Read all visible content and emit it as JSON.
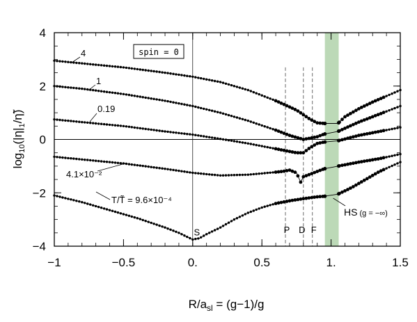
{
  "chart_data": {
    "type": "line",
    "xlabel": "R/a_sl = (g−1)/g",
    "xlabel_parts": {
      "main": "R/a",
      "sub": "sl",
      "rest": " = (g−1)/g"
    },
    "ylabel_text": "log10(|η|1/η̃)",
    "ylabel_parts": {
      "prefix": "log",
      "sub1": "10",
      "mid": "(|η|",
      "sub2": "1",
      "tail": "/η̃)"
    },
    "xlim": [
      -1,
      1.5
    ],
    "ylim": [
      -4,
      4
    ],
    "x_ticks": [
      -1,
      -0.5,
      0,
      0.5,
      1,
      1.5
    ],
    "x_tick_labels": [
      "−1",
      "−0.5",
      "0.",
      "0.5",
      "1.",
      "1.5"
    ],
    "y_ticks": [
      -4,
      -2,
      0,
      2,
      4
    ],
    "y_tick_labels": [
      "−4",
      "−2",
      "0",
      "2",
      "4"
    ],
    "legend_box": "spin = 0",
    "shaded_band": {
      "x0": 0.955,
      "x1": 1.055,
      "color": "#bcd9b7"
    },
    "zero_line_y": 0,
    "vertical_solid_x": 0,
    "dashed_lines": [
      {
        "x": 0.67,
        "label": "P"
      },
      {
        "x": 0.8,
        "label": "D"
      },
      {
        "x": 0.865,
        "label": "F"
      }
    ],
    "special_points": {
      "S": {
        "x": 0.0,
        "y": -3.75,
        "label": "S"
      },
      "HS": {
        "x": 1.0,
        "y": -2.15,
        "label": "HS",
        "sublabel": "(g = −∞)"
      }
    },
    "curve_labels": [
      "4",
      "1",
      "0.19",
      "4.1×10⁻²",
      "T/T̃ = 9.6×10⁻⁴"
    ],
    "series": [
      {
        "name": "4",
        "points": [
          [
            -1,
            2.95
          ],
          [
            -0.8,
            2.85
          ],
          [
            -0.5,
            2.7
          ],
          [
            -0.2,
            2.5
          ],
          [
            0,
            2.35
          ],
          [
            0.2,
            2.15
          ],
          [
            0.4,
            1.85
          ],
          [
            0.6,
            1.45
          ],
          [
            0.75,
            1.1
          ],
          [
            0.85,
            0.75
          ],
          [
            0.9,
            0.62
          ],
          [
            0.95,
            0.6
          ],
          [
            1.05,
            0.6
          ],
          [
            1.1,
            0.85
          ],
          [
            1.2,
            1.15
          ],
          [
            1.3,
            1.4
          ],
          [
            1.5,
            1.85
          ]
        ]
      },
      {
        "name": "1",
        "points": [
          [
            -1,
            2.0
          ],
          [
            -0.8,
            1.9
          ],
          [
            -0.5,
            1.7
          ],
          [
            -0.2,
            1.45
          ],
          [
            0,
            1.25
          ],
          [
            0.2,
            1.0
          ],
          [
            0.4,
            0.7
          ],
          [
            0.6,
            0.35
          ],
          [
            0.7,
            0.15
          ],
          [
            0.8,
            0.0
          ],
          [
            0.85,
            0.05
          ],
          [
            0.9,
            0.1
          ],
          [
            0.95,
            0.2
          ],
          [
            1.05,
            0.3
          ],
          [
            1.2,
            0.65
          ],
          [
            1.35,
            0.95
          ],
          [
            1.5,
            1.25
          ]
        ]
      },
      {
        "name": "0.19",
        "points": [
          [
            -1,
            0.75
          ],
          [
            -0.8,
            0.65
          ],
          [
            -0.5,
            0.5
          ],
          [
            -0.2,
            0.3
          ],
          [
            0,
            0.18
          ],
          [
            0.2,
            0.02
          ],
          [
            0.4,
            -0.15
          ],
          [
            0.55,
            -0.3
          ],
          [
            0.65,
            -0.4
          ],
          [
            0.75,
            -0.5
          ],
          [
            0.8,
            -0.5
          ],
          [
            0.85,
            -0.3
          ],
          [
            0.9,
            -0.15
          ],
          [
            0.95,
            -0.1
          ],
          [
            1.05,
            -0.05
          ],
          [
            1.2,
            0.15
          ],
          [
            1.35,
            0.3
          ],
          [
            1.5,
            0.45
          ]
        ]
      },
      {
        "name": "4.1×10⁻²",
        "points": [
          [
            -1,
            -0.65
          ],
          [
            -0.8,
            -0.75
          ],
          [
            -0.5,
            -0.9
          ],
          [
            -0.2,
            -1.1
          ],
          [
            0,
            -1.25
          ],
          [
            0.2,
            -1.35
          ],
          [
            0.4,
            -1.32
          ],
          [
            0.55,
            -1.25
          ],
          [
            0.65,
            -1.2
          ],
          [
            0.7,
            -1.15
          ],
          [
            0.75,
            -1.25
          ],
          [
            0.78,
            -1.6
          ],
          [
            0.8,
            -1.4
          ],
          [
            0.85,
            -1.3
          ],
          [
            0.9,
            -1.2
          ],
          [
            0.95,
            -1.1
          ],
          [
            1.05,
            -1.0
          ],
          [
            1.2,
            -0.85
          ],
          [
            1.35,
            -0.72
          ],
          [
            1.5,
            -0.55
          ]
        ]
      },
      {
        "name": "T/T̃ = 9.6×10⁻⁴",
        "points": [
          [
            -1,
            -2.1
          ],
          [
            -0.8,
            -2.35
          ],
          [
            -0.6,
            -2.65
          ],
          [
            -0.4,
            -2.95
          ],
          [
            -0.2,
            -3.3
          ],
          [
            -0.1,
            -3.5
          ],
          [
            0,
            -3.75
          ],
          [
            0.05,
            -3.7
          ],
          [
            0.1,
            -3.55
          ],
          [
            0.2,
            -3.3
          ],
          [
            0.3,
            -3.0
          ],
          [
            0.4,
            -2.75
          ],
          [
            0.5,
            -2.55
          ],
          [
            0.6,
            -2.4
          ],
          [
            0.7,
            -2.3
          ],
          [
            0.8,
            -2.22
          ],
          [
            0.9,
            -2.15
          ],
          [
            0.95,
            -2.13
          ],
          [
            1.05,
            -2.05
          ],
          [
            1.15,
            -1.8
          ],
          [
            1.25,
            -1.5
          ],
          [
            1.35,
            -1.2
          ],
          [
            1.5,
            -0.85
          ]
        ]
      }
    ]
  }
}
